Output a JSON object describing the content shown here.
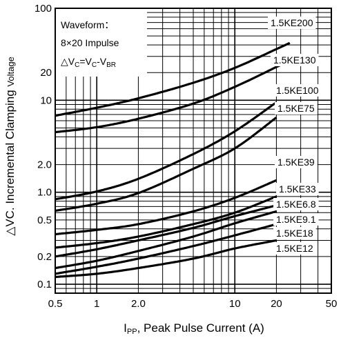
{
  "chart_data": {
    "type": "line",
    "title": "",
    "xlabel": {
      "main": "I",
      "sub": "PP",
      "rest": ", Peak Pulse Current (A)"
    },
    "ylabel": {
      "prefix": "△VC. Incremental Clamping",
      "suffix": "Voltage"
    },
    "x_scale": "log",
    "y_scale": "log",
    "xlim": [
      0.5,
      50
    ],
    "ylim": [
      0.08,
      100
    ],
    "x_ticks": [
      0.5,
      1,
      2,
      10,
      20,
      50
    ],
    "x_tick_labels": [
      "0.5",
      "1",
      "2.0",
      "10",
      "20",
      "50"
    ],
    "y_ticks": [
      0.1,
      0.2,
      0.5,
      1,
      2,
      10,
      20,
      100
    ],
    "y_tick_labels": [
      "0.1",
      "0.2",
      "0.5",
      "1.0",
      "2.0",
      "10",
      "20",
      "100"
    ],
    "grid": true,
    "annotation": {
      "line1": "Waveform：",
      "line2": "8×20 Impulse",
      "line3_a": "△V",
      "line3_b": "C",
      "line3_c": "=V",
      "line3_d": "C",
      "line3_e": "-V",
      "line3_f": "BR"
    },
    "series": [
      {
        "name": "1.5KE200",
        "x": [
          0.5,
          1,
          2,
          5,
          10,
          20,
          25
        ],
        "y": [
          6.8,
          8.3,
          10.5,
          15.5,
          22.5,
          36,
          42
        ]
      },
      {
        "name": "1.5KE130",
        "x": [
          0.5,
          1,
          2,
          5,
          10,
          20,
          25
        ],
        "y": [
          4.5,
          5.1,
          6.3,
          9.2,
          14,
          23,
          27
        ]
      },
      {
        "name": "1.5KE100",
        "x": [
          0.5,
          1,
          2,
          5,
          10,
          20
        ],
        "y": [
          0.84,
          1.02,
          1.4,
          2.6,
          4.6,
          9.5
        ]
      },
      {
        "name": "1.5KE75",
        "x": [
          0.5,
          1,
          2,
          5,
          10,
          20
        ],
        "y": [
          0.63,
          0.75,
          0.98,
          1.8,
          3.0,
          6.5
        ]
      },
      {
        "name": "1.5KE39",
        "x": [
          0.5,
          1,
          2,
          5,
          10,
          20
        ],
        "y": [
          0.35,
          0.39,
          0.45,
          0.62,
          0.87,
          1.35
        ]
      },
      {
        "name": "1.5KE33",
        "x": [
          0.5,
          1,
          2,
          5,
          10,
          20
        ],
        "y": [
          0.25,
          0.28,
          0.33,
          0.45,
          0.6,
          0.9
        ]
      },
      {
        "name": "1.5KE6.8",
        "x": [
          0.5,
          1,
          2,
          5,
          10,
          20
        ],
        "y": [
          0.2,
          0.24,
          0.3,
          0.41,
          0.55,
          0.72
        ]
      },
      {
        "name": "1.5KE9.1",
        "x": [
          0.5,
          1,
          2,
          5,
          10,
          20
        ],
        "y": [
          0.15,
          0.18,
          0.23,
          0.33,
          0.46,
          0.62
        ]
      },
      {
        "name": "1.5KE18",
        "x": [
          0.5,
          1,
          2,
          5,
          10,
          20
        ],
        "y": [
          0.13,
          0.155,
          0.19,
          0.26,
          0.34,
          0.45
        ]
      },
      {
        "name": "1.5KE12",
        "x": [
          0.5,
          1,
          2,
          5,
          10,
          20
        ],
        "y": [
          0.12,
          0.13,
          0.15,
          0.19,
          0.245,
          0.3
        ]
      }
    ]
  }
}
